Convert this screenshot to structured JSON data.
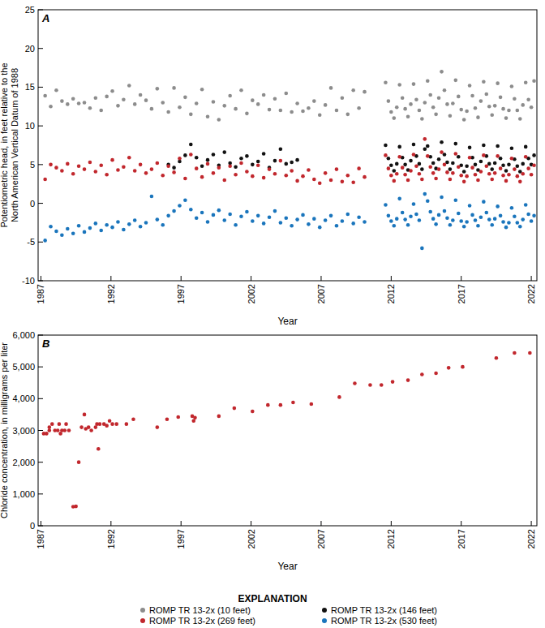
{
  "chart_data": [
    {
      "type": "scatter",
      "panel_label": "A",
      "xlabel": "Year",
      "ylabel": [
        "Potentiometric head, in feet relative to the",
        "North American Vertical Datum of 1988"
      ],
      "xlim": [
        1986.8,
        2022.4
      ],
      "xticks": [
        1987,
        1992,
        1997,
        2002,
        2007,
        2012,
        2017,
        2022
      ],
      "ylim": [
        -10,
        25
      ],
      "yticks": [
        -10,
        -5,
        0,
        5,
        10,
        15,
        20,
        25
      ],
      "grid": false,
      "marker": "circle",
      "legend": "bottom",
      "legend_title": "EXPLANATION",
      "x": [
        1987.3,
        1987.7,
        1988.1,
        1988.5,
        1988.9,
        1989.3,
        1989.7,
        1990.1,
        1990.5,
        1990.9,
        1991.3,
        1991.7,
        1992.1,
        1992.5,
        1992.9,
        1993.3,
        1993.7,
        1994.1,
        1994.5,
        1994.9,
        1995.3,
        1995.7,
        1996.1,
        1996.5,
        1996.9,
        1997.3,
        1997.7,
        1998.1,
        1998.5,
        1998.9,
        1999.3,
        1999.7,
        2000.1,
        2000.5,
        2000.9,
        2001.3,
        2001.7,
        2002.1,
        2002.5,
        2002.9,
        2003.3,
        2003.7,
        2004.1,
        2004.5,
        2004.9,
        2005.3,
        2005.7,
        2006.1,
        2006.5,
        2006.9,
        2007.3,
        2007.7,
        2008.1,
        2008.5,
        2008.9,
        2009.3,
        2009.7,
        2010.1,
        2011.6,
        2011.8,
        2012.0,
        2012.2,
        2012.4,
        2012.6,
        2012.8,
        2013.0,
        2013.2,
        2013.4,
        2013.6,
        2013.8,
        2014.0,
        2014.2,
        2014.4,
        2014.6,
        2014.8,
        2015.0,
        2015.2,
        2015.4,
        2015.6,
        2015.8,
        2016.0,
        2016.2,
        2016.4,
        2016.6,
        2016.8,
        2017.0,
        2017.2,
        2017.4,
        2017.6,
        2017.8,
        2018.0,
        2018.2,
        2018.4,
        2018.6,
        2018.8,
        2019.0,
        2019.2,
        2019.4,
        2019.6,
        2019.8,
        2020.0,
        2020.2,
        2020.4,
        2020.6,
        2020.8,
        2021.0,
        2021.2,
        2021.4,
        2021.6,
        2021.8,
        2022.0,
        2022.2
      ],
      "series": [
        {
          "name": "ROMP TR 13-2x (10 feet)",
          "color": "#8c8c8c",
          "values": [
            13.9,
            12.5,
            14.6,
            13.2,
            12.8,
            13.5,
            12.9,
            13.0,
            12.3,
            13.6,
            12.0,
            13.8,
            14.5,
            12.6,
            13.4,
            15.2,
            12.8,
            14.0,
            13.3,
            12.2,
            14.8,
            13.0,
            11.8,
            14.9,
            12.4,
            13.7,
            11.5,
            12.9,
            14.7,
            11.2,
            13.1,
            10.8,
            12.6,
            13.9,
            12.2,
            14.6,
            11.6,
            13.3,
            12.8,
            14.0,
            12.1,
            13.5,
            12.0,
            14.2,
            11.8,
            12.9,
            11.9,
            12.3,
            13.2,
            11.4,
            12.7,
            14.9,
            12.0,
            13.6,
            11.5,
            14.6,
            12.3,
            14.4,
            15.6,
            13.2,
            11.8,
            11.0,
            12.4,
            15.3,
            13.6,
            12.2,
            11.2,
            12.8,
            15.4,
            13.4,
            12.0,
            10.9,
            13.0,
            15.8,
            14.0,
            12.4,
            11.5,
            13.6,
            17.0,
            14.6,
            12.8,
            11.3,
            12.9,
            15.9,
            13.8,
            12.1,
            10.8,
            11.9,
            15.2,
            13.9,
            12.3,
            11.1,
            13.2,
            15.7,
            14.1,
            12.5,
            11.4,
            12.6,
            15.5,
            13.7,
            12.2,
            11.0,
            12.0,
            15.1,
            13.5,
            12.0,
            10.9,
            12.7,
            15.6,
            13.4,
            12.4,
            15.8
          ]
        },
        {
          "name": "ROMP TR 13-2x (146 feet)",
          "color": "#111111",
          "values": [
            null,
            null,
            null,
            null,
            null,
            null,
            null,
            null,
            null,
            null,
            null,
            null,
            null,
            null,
            null,
            null,
            null,
            null,
            null,
            null,
            null,
            null,
            5.0,
            4.6,
            5.4,
            6.2,
            7.6,
            5.9,
            4.8,
            5.6,
            6.3,
            4.9,
            6.6,
            5.2,
            4.7,
            5.8,
            6.1,
            5.0,
            5.4,
            6.4,
            4.6,
            5.5,
            7.0,
            5.1,
            5.3,
            5.6,
            null,
            null,
            null,
            null,
            null,
            null,
            null,
            null,
            null,
            null,
            null,
            null,
            7.5,
            5.8,
            4.9,
            4.2,
            5.1,
            7.3,
            5.9,
            5.0,
            4.3,
            5.5,
            7.6,
            6.1,
            5.1,
            4.4,
            7.0,
            7.4,
            6.0,
            5.2,
            4.5,
            5.7,
            7.9,
            6.3,
            5.3,
            4.4,
            5.2,
            7.7,
            6.0,
            4.9,
            4.1,
            4.8,
            7.2,
            5.9,
            5.0,
            4.3,
            5.4,
            7.5,
            6.1,
            5.1,
            4.4,
            5.2,
            7.4,
            5.8,
            4.9,
            4.2,
            5.0,
            7.1,
            5.7,
            4.8,
            4.1,
            5.1,
            7.3,
            5.8,
            5.0,
            6.2
          ]
        },
        {
          "name": "ROMP TR 13-2x (269 feet)",
          "color": "#c1272d",
          "values": [
            3.1,
            5.0,
            4.6,
            4.2,
            5.1,
            3.8,
            4.8,
            4.4,
            5.3,
            4.1,
            4.9,
            3.7,
            5.6,
            4.3,
            4.7,
            5.9,
            4.2,
            5.0,
            3.9,
            4.4,
            5.2,
            3.6,
            4.8,
            4.0,
            5.8,
            3.2,
            6.3,
            4.5,
            3.4,
            5.1,
            3.9,
            4.6,
            3.0,
            4.8,
            3.7,
            5.2,
            4.1,
            3.5,
            4.9,
            3.3,
            4.4,
            3.8,
            5.5,
            3.6,
            4.2,
            2.9,
            3.5,
            4.3,
            3.1,
            2.6,
            3.9,
            3.0,
            4.4,
            2.8,
            3.6,
            2.7,
            4.5,
            3.4,
            6.2,
            4.5,
            3.6,
            2.9,
            3.8,
            6.0,
            4.6,
            3.7,
            3.0,
            4.2,
            6.3,
            4.8,
            3.8,
            3.1,
            8.3,
            6.1,
            4.7,
            3.9,
            3.2,
            4.4,
            6.6,
            5.0,
            4.0,
            3.1,
            3.9,
            6.4,
            4.7,
            3.6,
            2.8,
            3.5,
            5.9,
            4.6,
            3.7,
            3.0,
            4.1,
            6.2,
            4.8,
            3.8,
            3.1,
            3.9,
            6.1,
            4.5,
            3.6,
            2.9,
            3.7,
            5.8,
            4.4,
            3.5,
            2.8,
            3.8,
            6.0,
            4.5,
            3.7,
            4.9
          ]
        },
        {
          "name": "ROMP TR 13-2x (530 feet)",
          "color": "#1a75bc",
          "values": [
            -4.8,
            -3.0,
            -3.6,
            -4.1,
            -3.3,
            -3.9,
            -2.9,
            -3.7,
            -3.2,
            -2.6,
            -3.5,
            -2.8,
            -3.1,
            -2.4,
            -3.4,
            -2.7,
            -2.2,
            -3.0,
            -2.5,
            0.9,
            -2.1,
            -2.8,
            -1.6,
            -1.0,
            -0.3,
            0.4,
            -0.8,
            -1.9,
            -1.2,
            -2.4,
            -1.5,
            -0.9,
            -2.2,
            -1.4,
            -2.8,
            -1.7,
            -1.1,
            -2.3,
            -1.6,
            -2.6,
            -1.8,
            -1.0,
            -2.5,
            -1.9,
            -2.9,
            -2.1,
            -1.5,
            -2.7,
            -2.0,
            -3.1,
            -2.2,
            -1.6,
            -2.9,
            -2.3,
            -1.4,
            -2.6,
            -1.8,
            -2.4,
            -0.2,
            -1.6,
            -2.3,
            -2.9,
            -2.0,
            0.6,
            -1.2,
            -2.1,
            -2.8,
            -1.7,
            -0.1,
            -1.4,
            -2.2,
            -5.8,
            1.2,
            0.3,
            -1.1,
            -2.0,
            -2.7,
            -1.5,
            0.8,
            -1.0,
            -1.9,
            -2.8,
            -2.2,
            0.4,
            -1.3,
            -2.3,
            -3.0,
            -2.4,
            -0.3,
            -1.5,
            -2.2,
            -2.9,
            -1.8,
            0.2,
            -1.2,
            -2.1,
            -2.8,
            -2.0,
            -0.4,
            -1.6,
            -2.4,
            -3.1,
            -2.5,
            -0.6,
            -1.7,
            -2.5,
            -3.0,
            -2.1,
            -0.2,
            -1.4,
            -2.3,
            -1.6
          ]
        }
      ]
    },
    {
      "type": "scatter",
      "panel_label": "B",
      "xlabel": "Year",
      "ylabel": "Chloride concentration, in milligrams per liter",
      "xlim": [
        1986.8,
        2022.4
      ],
      "xticks": [
        1987,
        1992,
        1997,
        2002,
        2007,
        2012,
        2017,
        2022
      ],
      "ylim": [
        0,
        6000
      ],
      "yticks": [
        0,
        {
          "value": 1000,
          "label": "1,000"
        },
        {
          "value": 2000,
          "label": "2,000"
        },
        {
          "value": 3000,
          "label": "3,000"
        },
        {
          "value": 4000,
          "label": "4,000"
        },
        {
          "value": 5000,
          "label": "5,000"
        },
        {
          "value": 6000,
          "label": "6,000"
        }
      ],
      "grid": false,
      "marker": "circle",
      "color": "#c1272d",
      "x": [
        1987.2,
        1987.4,
        1987.6,
        1987.6,
        1987.8,
        1988.0,
        1988.2,
        1988.3,
        1988.4,
        1988.5,
        1988.7,
        1988.8,
        1989.0,
        1989.3,
        1989.5,
        1989.7,
        1989.9,
        1990.1,
        1990.2,
        1990.4,
        1990.6,
        1990.9,
        1991.0,
        1991.1,
        1991.2,
        1991.5,
        1991.7,
        1991.9,
        1992.1,
        1992.4,
        1993.1,
        1993.6,
        1995.3,
        1996.0,
        1996.8,
        1997.8,
        1997.9,
        1998.0,
        1999.7,
        2000.8,
        2002.1,
        2003.2,
        2004.1,
        2005.0,
        2006.3,
        2008.3,
        2009.4,
        2010.5,
        2011.3,
        2012.1,
        2013.2,
        2014.2,
        2015.2,
        2016.1,
        2017.1,
        2019.5,
        2020.8,
        2021.9
      ],
      "values": [
        2900,
        2900,
        3100,
        3000,
        3200,
        3000,
        3000,
        3200,
        2900,
        3000,
        3000,
        3200,
        3000,
        600,
        610,
        2000,
        3100,
        3500,
        3050,
        3100,
        3000,
        3100,
        3200,
        2420,
        3200,
        3200,
        3150,
        3300,
        3200,
        3200,
        3200,
        3350,
        3100,
        3350,
        3420,
        3450,
        3300,
        3400,
        3450,
        3700,
        3600,
        3800,
        3800,
        3880,
        3830,
        4050,
        4480,
        4430,
        4430,
        4530,
        4580,
        4760,
        4800,
        4970,
        5000,
        5280,
        5440,
        5440
      ]
    }
  ]
}
